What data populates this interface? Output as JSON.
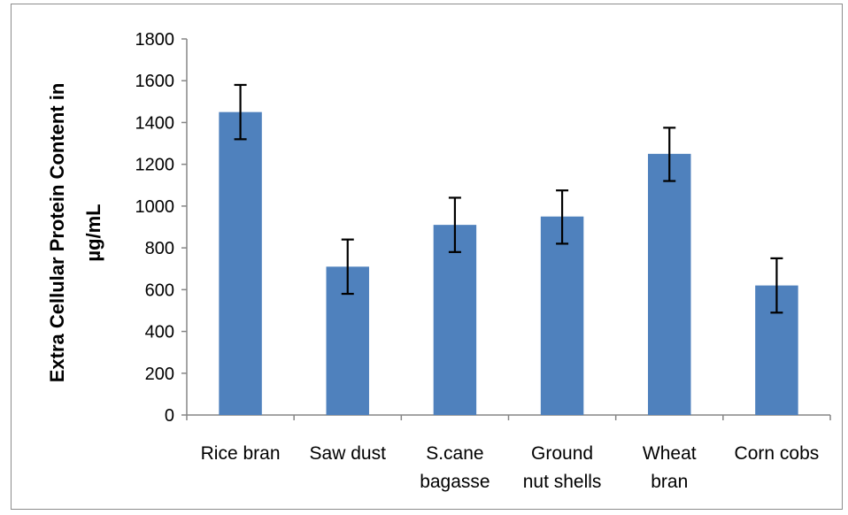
{
  "chart_data": {
    "type": "bar",
    "title": "",
    "xlabel": "",
    "ylabel_lines": [
      "Extra Cellular Protein Content in",
      "µg/mL"
    ],
    "ylim": [
      0,
      1800
    ],
    "yticks": [
      0,
      200,
      400,
      600,
      800,
      1000,
      1200,
      1400,
      1600,
      1800
    ],
    "categories": [
      [
        "Rice bran"
      ],
      [
        "Saw dust"
      ],
      [
        "S.cane",
        "bagasse"
      ],
      [
        "Ground",
        "nut shells"
      ],
      [
        "Wheat",
        "bran"
      ],
      [
        "Corn cobs"
      ]
    ],
    "values": [
      1450,
      710,
      910,
      950,
      1250,
      620
    ],
    "error_low": [
      1320,
      580,
      780,
      820,
      1120,
      490
    ],
    "error_high": [
      1580,
      840,
      1040,
      1075,
      1375,
      750
    ],
    "bar_color": "#4f81bd",
    "axis_color": "#868686",
    "error_color": "#000000",
    "grid": false,
    "legend": "none"
  }
}
